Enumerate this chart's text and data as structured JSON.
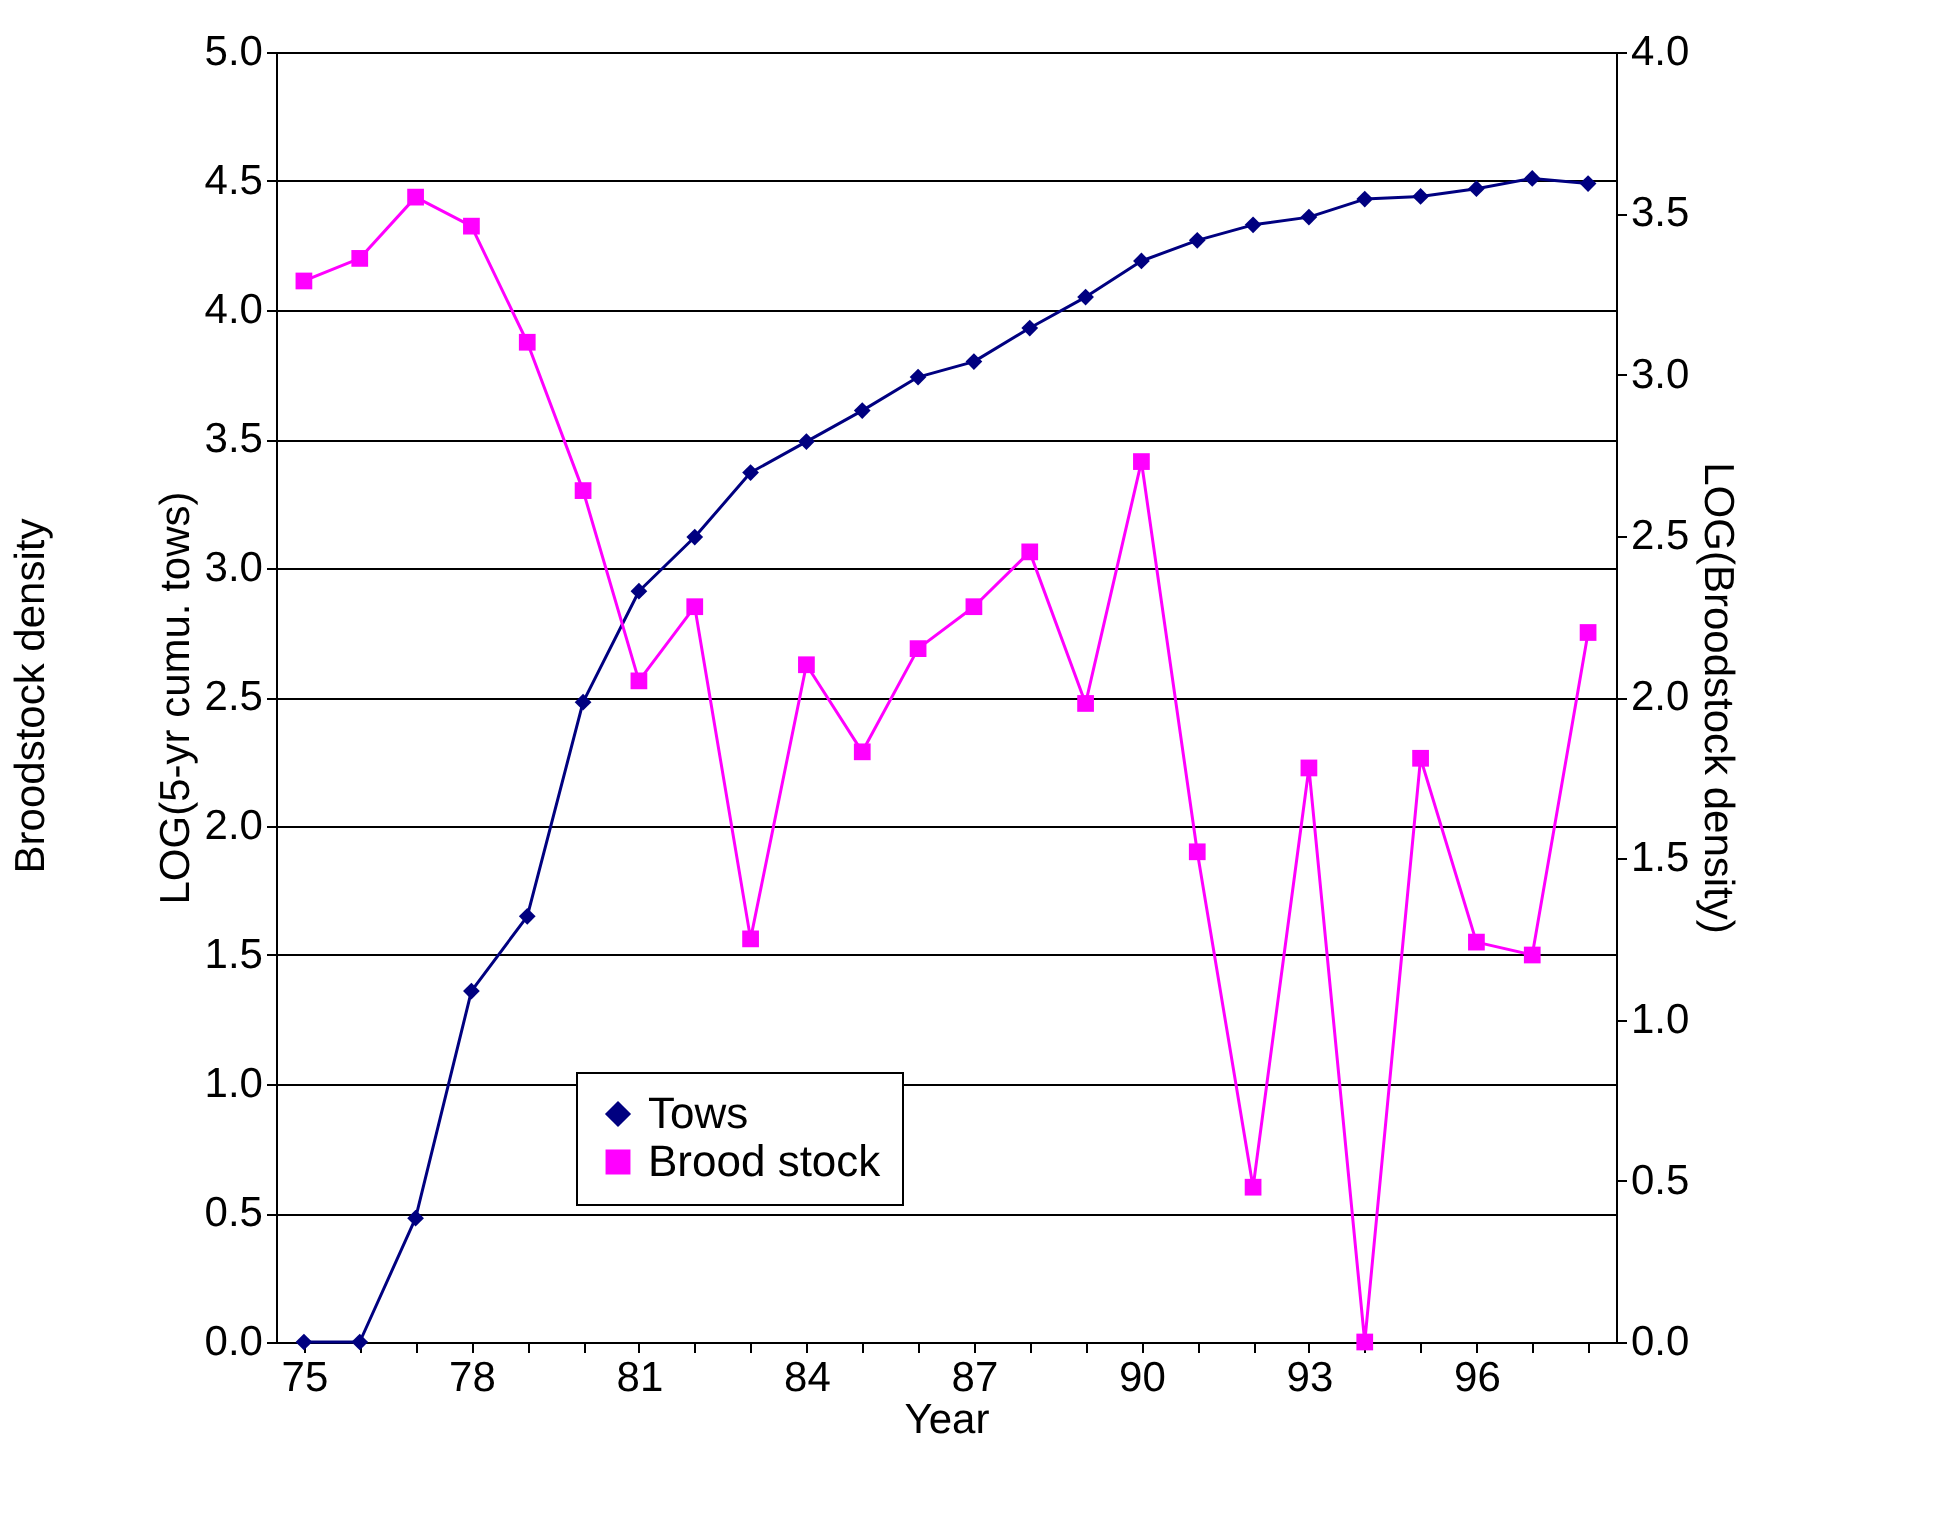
{
  "chart_data": {
    "type": "line",
    "xlabel": "Year",
    "ylabel": "LOG(5-yr cumu. tows)",
    "y2label": "LOG(Broodstock density)",
    "annotations": [
      "Broodstock density"
    ],
    "categories": [
      "75",
      null,
      null,
      "78",
      null,
      null,
      "81",
      null,
      null,
      "84",
      null,
      null,
      "87",
      null,
      null,
      "90",
      null,
      null,
      "93",
      null,
      null,
      "96",
      null,
      null
    ],
    "series": [
      {
        "name": "Tows",
        "color": "#000080",
        "marker": "diamond",
        "values": [
          0,
          0,
          0.48,
          1.36,
          1.65,
          2.48,
          2.91,
          3.12,
          3.37,
          3.49,
          3.61,
          3.74,
          3.8,
          3.93,
          4.05,
          4.19,
          4.27,
          4.33,
          4.36,
          4.43,
          4.44,
          4.47,
          4.51,
          4.49
        ]
      },
      {
        "name": "Brood stock",
        "color": "#ff00ff",
        "marker": "square",
        "axis": "y2",
        "values": [
          3.29,
          3.36,
          3.55,
          3.46,
          3.1,
          2.64,
          2.05,
          2.28,
          1.25,
          2.1,
          1.83,
          2.15,
          2.28,
          2.45,
          1.98,
          2.73,
          1.52,
          0.48,
          1.78,
          0.0,
          1.81,
          1.24,
          1.2,
          2.2
        ]
      }
    ],
    "ylim": [
      0,
      5
    ],
    "yticks": [
      {
        "value": 0,
        "label": "0.0"
      },
      0.5,
      {
        "value": 1,
        "label": "1.0"
      },
      1.5,
      {
        "value": 2,
        "label": "2.0"
      },
      2.5,
      {
        "value": 3,
        "label": "3.0"
      },
      3.5,
      {
        "value": 4,
        "label": "4.0"
      },
      4.5,
      {
        "value": 5,
        "label": "5.0"
      }
    ],
    "y2lim": [
      0,
      4
    ],
    "y2ticks": [
      {
        "value": 0,
        "label": "0.0"
      },
      0.5,
      {
        "value": 1,
        "label": "1.0"
      },
      1.5,
      {
        "value": 2,
        "label": "2.0"
      },
      2.5,
      {
        "value": 3,
        "label": "3.0"
      },
      3.5,
      {
        "value": 4,
        "label": "4.0"
      }
    ],
    "grid": "y",
    "legend": "bottom"
  }
}
